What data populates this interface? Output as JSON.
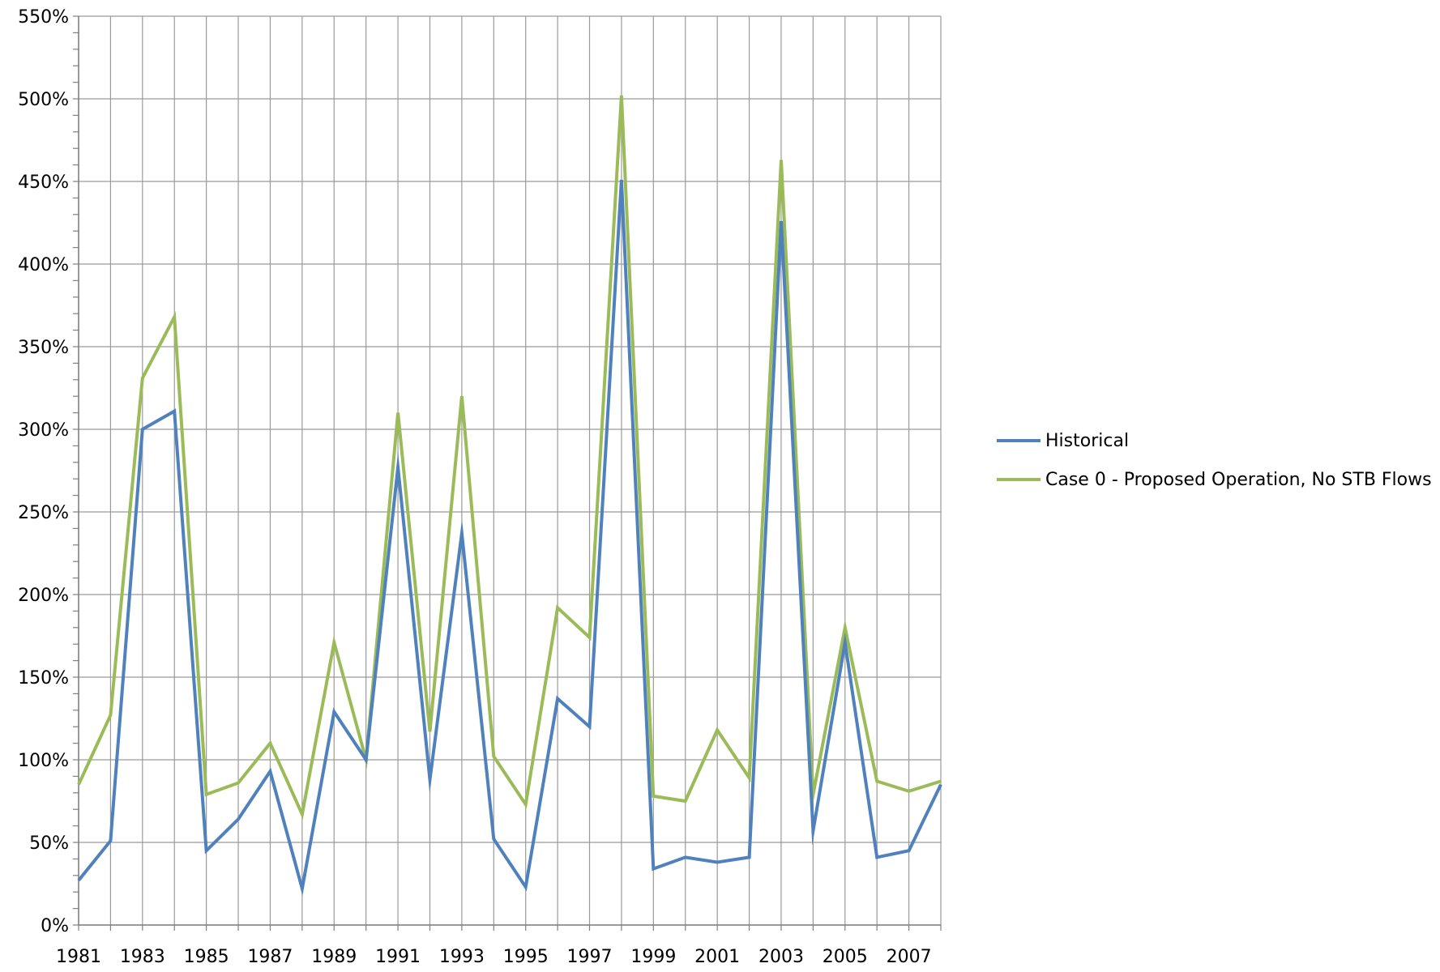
{
  "chart_data": {
    "type": "line",
    "x": [
      1981,
      1982,
      1983,
      1984,
      1985,
      1986,
      1987,
      1988,
      1989,
      1990,
      1991,
      1992,
      1993,
      1994,
      1995,
      1996,
      1997,
      1998,
      1999,
      2000,
      2001,
      2002,
      2003,
      2004,
      2005,
      2006,
      2007,
      2008
    ],
    "x_tick_labels": [
      "1981",
      "1983",
      "1985",
      "1987",
      "1989",
      "1991",
      "1993",
      "1995",
      "1997",
      "1999",
      "2001",
      "2003",
      "2005",
      "2007"
    ],
    "y_tick_labels": [
      "0%",
      "50%",
      "100%",
      "150%",
      "200%",
      "250%",
      "300%",
      "350%",
      "400%",
      "450%",
      "500%",
      "550%"
    ],
    "ylim": [
      0,
      550
    ],
    "xlim": [
      1981,
      2008
    ],
    "grid": true,
    "legend_position": "right",
    "series": [
      {
        "name": "Historical",
        "color": "#4F81BD",
        "values": [
          27,
          51,
          300,
          311,
          45,
          64,
          93,
          22,
          129,
          100,
          277,
          88,
          237,
          52,
          23,
          137,
          120,
          451,
          34,
          41,
          38,
          41,
          426,
          57,
          171,
          41,
          45,
          85
        ]
      },
      {
        "name": "Case 0 - Proposed Operation, No STB Flows",
        "color": "#9BBB59",
        "values": [
          85,
          127,
          331,
          368,
          79,
          86,
          110,
          67,
          171,
          100,
          310,
          117,
          320,
          102,
          73,
          192,
          174,
          502,
          78,
          75,
          118,
          89,
          463,
          79,
          180,
          87,
          81,
          87
        ]
      }
    ]
  }
}
